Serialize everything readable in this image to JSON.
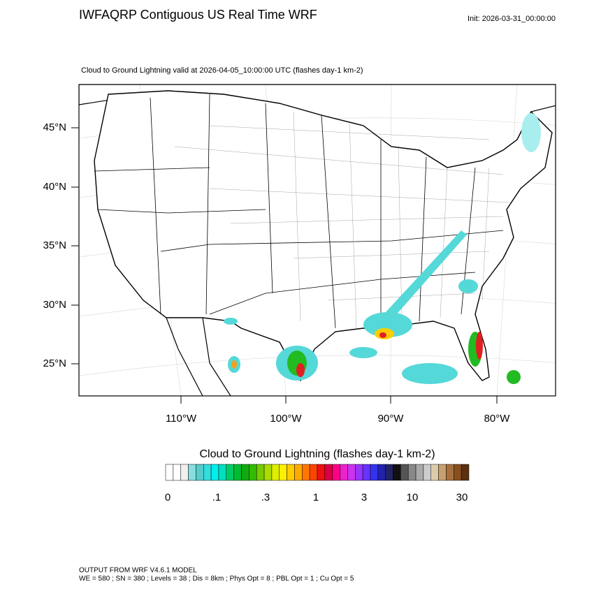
{
  "header": {
    "title": "IWFAQRP Contiguous US Real Time WRF",
    "init": "Init: 2026-03-31_00:00:00"
  },
  "map": {
    "subtitle": "Cloud to Ground Lightning valid at 2026-04-05_10:00:00 UTC   (flashes day-1 km-2)",
    "lat_labels": [
      "45°N",
      "40°N",
      "35°N",
      "30°N",
      "25°N"
    ],
    "lon_labels": [
      "110°W",
      "100°W",
      "90°W",
      "80°W"
    ]
  },
  "colorbar": {
    "title": "Cloud to Ground Lightning  (flashes day-1 km-2)",
    "labels": [
      "0",
      ".1",
      ".3",
      "1",
      "3",
      "10",
      "30"
    ]
  },
  "footer": {
    "line1": "OUTPUT FROM WRF V4.6.1 MODEL",
    "line2": "WE = 580 ; SN = 380 ; Levels = 38 ; Dis = 8km ; Phys Opt = 8 ; PBL Opt = 1 ; Cu Opt = 5"
  }
}
